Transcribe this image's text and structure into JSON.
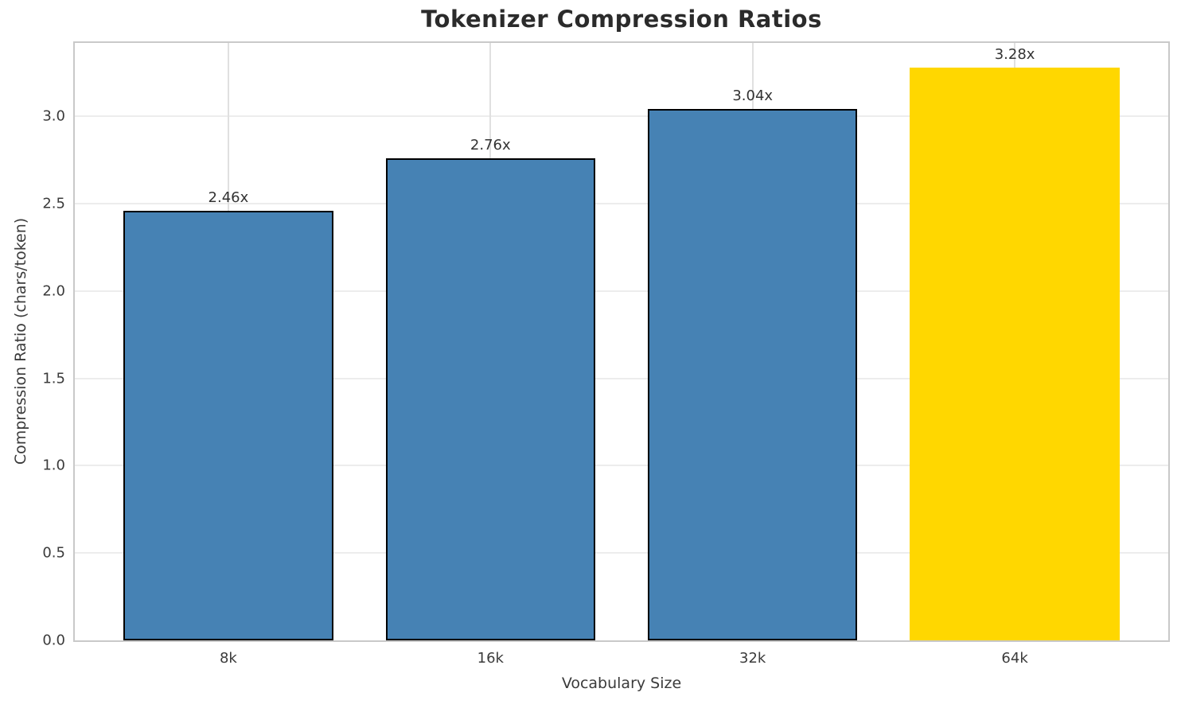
{
  "chart_data": {
    "type": "bar",
    "title": "Tokenizer Compression Ratios",
    "xlabel": "Vocabulary Size",
    "ylabel": "Compression Ratio (chars/token)",
    "categories": [
      "8k",
      "16k",
      "32k",
      "64k"
    ],
    "values": [
      2.46,
      2.76,
      3.04,
      3.28
    ],
    "bar_labels": [
      "2.46x",
      "2.76x",
      "3.04x",
      "3.28x"
    ],
    "ylim": [
      0,
      3.42
    ],
    "yticks": [
      0.0,
      0.5,
      1.0,
      1.5,
      2.0,
      2.5,
      3.0
    ],
    "ytick_labels": [
      "0.0",
      "0.5",
      "1.0",
      "1.5",
      "2.0",
      "2.5",
      "3.0"
    ],
    "grid": true,
    "legend": "none",
    "bar_colors": [
      "#4682B4",
      "#4682B4",
      "#4682B4",
      "#FFD700"
    ],
    "bar_edge_colors": [
      "#000000",
      "#000000",
      "#000000",
      "#FFD700"
    ],
    "highlight_index": 3
  },
  "colors": {
    "bar_blue": "#4682B4",
    "bar_gold": "#FFD700",
    "bar_edge": "#000000",
    "h_grid": "#ededed",
    "v_grid": "#e0e0e0",
    "spine": "#c9c9c9",
    "title_text": "#2b2b2b",
    "tick_text": "#3b3b3b",
    "value_text": "#333333"
  }
}
